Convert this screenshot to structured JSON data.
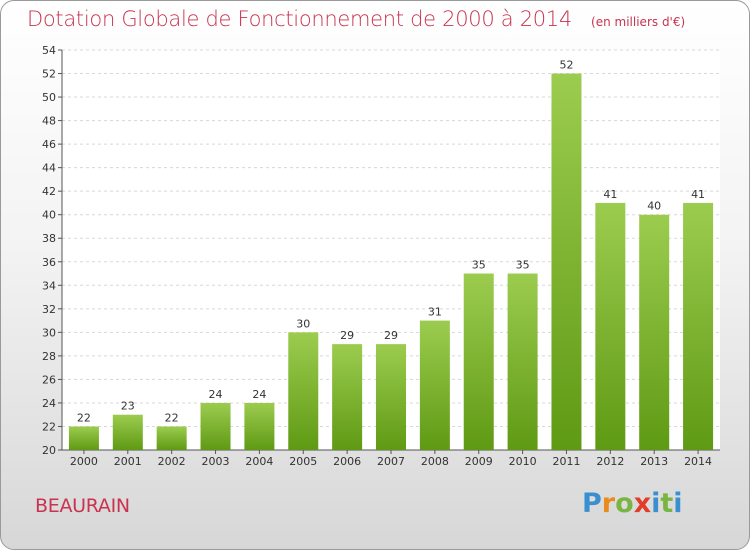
{
  "header": {
    "title": "Dotation Globale de Fonctionnement de 2000 à 2014",
    "unit": "(en milliers d'€)"
  },
  "footer": {
    "commune": "BEAURAIN",
    "logo": "Proxiti"
  },
  "colors": {
    "title": "#c8334f",
    "bar_top": "#9ccc4f",
    "bar_bottom": "#5f9a14",
    "grid": "#d8d8d8"
  },
  "chart_data": {
    "type": "bar",
    "title": "Dotation Globale de Fonctionnement de 2000 à 2014",
    "subtitle": "(en milliers d'€)",
    "xlabel": "",
    "ylabel": "",
    "categories": [
      "2000",
      "2001",
      "2002",
      "2003",
      "2004",
      "2005",
      "2006",
      "2007",
      "2008",
      "2009",
      "2010",
      "2011",
      "2012",
      "2013",
      "2014"
    ],
    "values": [
      22,
      23,
      22,
      24,
      24,
      30,
      29,
      29,
      31,
      35,
      35,
      52,
      41,
      40,
      41
    ],
    "ylim": [
      20,
      54
    ],
    "yticks": [
      20,
      22,
      24,
      26,
      28,
      30,
      32,
      34,
      36,
      38,
      40,
      42,
      44,
      46,
      48,
      50,
      52,
      54
    ],
    "grid": "horizontal dashed",
    "legend": "none"
  }
}
